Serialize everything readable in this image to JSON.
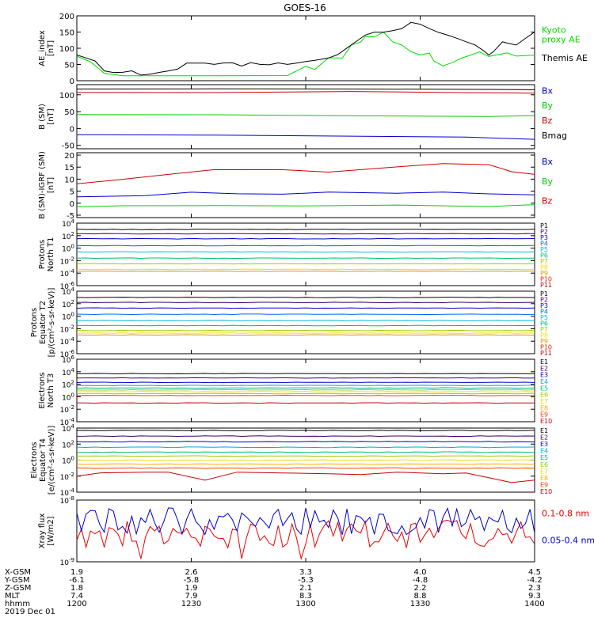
{
  "title": "GOES-16",
  "date_label": "2019 Dec 01",
  "footer": {
    "row_labels": [
      "X-GSM",
      "Y-GSM",
      "Z-GSM",
      "MLT",
      "hhmm"
    ],
    "columns": [
      [
        "1.9",
        "-6.1",
        "1.8",
        "7.4",
        "1200"
      ],
      [
        "2.6",
        "-5.8",
        "1.9",
        "7.9",
        "1230"
      ],
      [
        "3.3",
        "-5.3",
        "2.1",
        "8.3",
        "1300"
      ],
      [
        "4.0",
        "-4.8",
        "2.2",
        "8.8",
        "1330"
      ],
      [
        "4.5",
        "-4.2",
        "2.3",
        "9.3",
        "1400"
      ]
    ]
  },
  "chart_data": [
    {
      "type": "line",
      "panel": "ae",
      "ylabel": [
        "AE_index",
        "[nT]"
      ],
      "ylim": [
        0,
        200
      ],
      "yticks": [
        "0",
        "50",
        "100",
        "150",
        "200"
      ],
      "x_time": [
        "12:00",
        "14:00"
      ],
      "series": [
        {
          "name": "Kyoto proxy AE",
          "label_lines": [
            "Kyoto",
            "proxy AE"
          ],
          "color": "#00dd00",
          "points": [
            [
              0,
              75
            ],
            [
              3,
              58
            ],
            [
              6,
              22
            ],
            [
              10,
              15
            ],
            [
              15,
              15
            ],
            [
              30,
              15
            ],
            [
              40,
              15
            ],
            [
              46,
              15
            ],
            [
              50,
              45
            ],
            [
              52,
              35
            ],
            [
              55,
              70
            ],
            [
              58,
              70
            ],
            [
              60,
              110
            ],
            [
              62,
              120
            ],
            [
              63,
              135
            ],
            [
              65,
              135
            ],
            [
              67,
              150
            ],
            [
              69,
              120
            ],
            [
              71,
              110
            ],
            [
              73,
              90
            ],
            [
              75,
              80
            ],
            [
              77,
              85
            ],
            [
              78,
              60
            ],
            [
              80,
              45
            ],
            [
              82,
              55
            ],
            [
              84,
              70
            ],
            [
              86,
              80
            ],
            [
              88,
              90
            ],
            [
              90,
              75
            ],
            [
              92,
              80
            ],
            [
              94,
              85
            ],
            [
              96,
              75
            ],
            [
              100,
              80
            ]
          ]
        },
        {
          "name": "Themis AE",
          "label_lines": [
            "Themis AE"
          ],
          "color": "#000000",
          "points": [
            [
              0,
              80
            ],
            [
              2,
              70
            ],
            [
              4,
              60
            ],
            [
              6,
              30
            ],
            [
              8,
              25
            ],
            [
              10,
              25
            ],
            [
              12,
              30
            ],
            [
              14,
              18
            ],
            [
              16,
              20
            ],
            [
              18,
              25
            ],
            [
              20,
              30
            ],
            [
              22,
              35
            ],
            [
              24,
              55
            ],
            [
              26,
              55
            ],
            [
              28,
              55
            ],
            [
              30,
              50
            ],
            [
              32,
              55
            ],
            [
              34,
              55
            ],
            [
              36,
              45
            ],
            [
              38,
              55
            ],
            [
              40,
              50
            ],
            [
              42,
              50
            ],
            [
              44,
              55
            ],
            [
              46,
              50
            ],
            [
              48,
              55
            ],
            [
              50,
              60
            ],
            [
              52,
              62
            ],
            [
              55,
              70
            ],
            [
              57,
              80
            ],
            [
              59,
              100
            ],
            [
              61,
              120
            ],
            [
              63,
              140
            ],
            [
              65,
              150
            ],
            [
              67,
              150
            ],
            [
              69,
              155
            ],
            [
              71,
              160
            ],
            [
              73,
              180
            ],
            [
              75,
              175
            ],
            [
              77,
              160
            ],
            [
              79,
              150
            ],
            [
              81,
              140
            ],
            [
              83,
              130
            ],
            [
              85,
              120
            ],
            [
              87,
              110
            ],
            [
              89,
              90
            ],
            [
              90,
              80
            ],
            [
              91,
              90
            ],
            [
              93,
              120
            ],
            [
              94,
              115
            ],
            [
              96,
              110
            ],
            [
              98,
              130
            ],
            [
              99,
              140
            ],
            [
              100,
              150
            ]
          ]
        }
      ]
    },
    {
      "type": "line",
      "panel": "b_sm",
      "ylabel": [
        "B (SM)",
        "[nT]"
      ],
      "ylim": [
        -60,
        130
      ],
      "yticks": [
        "-50",
        "0",
        "50",
        "100"
      ],
      "series": [
        {
          "name": "Bx",
          "color": "#0000cc",
          "points": [
            [
              0,
              -18
            ],
            [
              30,
              -20
            ],
            [
              60,
              -22
            ],
            [
              85,
              -25
            ],
            [
              100,
              -32
            ]
          ]
        },
        {
          "name": "By",
          "color": "#00cc00",
          "points": [
            [
              0,
              42
            ],
            [
              30,
              40
            ],
            [
              60,
              38
            ],
            [
              90,
              36
            ],
            [
              100,
              38
            ]
          ]
        },
        {
          "name": "Bz",
          "color": "#cc0000",
          "points": [
            [
              0,
              107
            ],
            [
              30,
              107
            ],
            [
              60,
              109
            ],
            [
              85,
              107
            ],
            [
              100,
              105
            ]
          ]
        },
        {
          "name": "Bmag",
          "color": "#000000",
          "points": [
            [
              0,
              117
            ],
            [
              30,
              117
            ],
            [
              60,
              117
            ],
            [
              90,
              115
            ],
            [
              100,
              114
            ]
          ]
        }
      ]
    },
    {
      "type": "line",
      "panel": "b_minus_igrf",
      "ylabel": [
        "B (SM)-IGRF (SM)",
        "[nT]"
      ],
      "ylim": [
        -6,
        21
      ],
      "yticks": [
        "-5",
        "0",
        "5",
        "10",
        "15",
        "20"
      ],
      "series": [
        {
          "name": "Bx",
          "color": "#0000cc",
          "points": [
            [
              0,
              2.5
            ],
            [
              15,
              3
            ],
            [
              25,
              4.5
            ],
            [
              35,
              4
            ],
            [
              45,
              3.8
            ],
            [
              55,
              4.5
            ],
            [
              70,
              4
            ],
            [
              80,
              4.5
            ],
            [
              90,
              4
            ],
            [
              100,
              3.5
            ]
          ]
        },
        {
          "name": "By",
          "color": "#00cc00",
          "points": [
            [
              0,
              -1.5
            ],
            [
              10,
              -1
            ],
            [
              30,
              -1
            ],
            [
              50,
              -1.2
            ],
            [
              70,
              -0.8
            ],
            [
              90,
              -1.5
            ],
            [
              100,
              -0.5
            ]
          ]
        },
        {
          "name": "Bz",
          "color": "#cc0000",
          "points": [
            [
              0,
              8
            ],
            [
              10,
              10
            ],
            [
              20,
              12
            ],
            [
              30,
              14
            ],
            [
              45,
              14
            ],
            [
              55,
              13
            ],
            [
              70,
              15
            ],
            [
              80,
              16.5
            ],
            [
              90,
              16
            ],
            [
              95,
              13
            ],
            [
              100,
              12
            ]
          ]
        }
      ]
    },
    {
      "type": "line",
      "panel": "protons_t1",
      "ylabel": [
        "Protons",
        "North T1"
      ],
      "yscale": "log",
      "ylim_exp": [
        -6,
        4
      ],
      "ytick_exps": [
        -6,
        -4,
        -2,
        0,
        2,
        4
      ],
      "series": [
        {
          "name": "P1",
          "color": "#000000",
          "log_value": 3.0
        },
        {
          "name": "P2",
          "color": "#440066",
          "log_value": 2.3
        },
        {
          "name": "P3",
          "color": "#0000cc",
          "log_value": 1.5
        },
        {
          "name": "P4",
          "color": "#0066ff",
          "log_value": 0.4
        },
        {
          "name": "P5",
          "color": "#00bbdd",
          "log_value": -0.6
        },
        {
          "name": "P6",
          "color": "#00bb77",
          "log_value": -1.6
        },
        {
          "name": "P7",
          "color": "#99cc00",
          "log_value": -2.5
        },
        {
          "name": "P8",
          "color": "#eedd00",
          "log_value": -3.4
        },
        {
          "name": "P9",
          "color": "#dd9900",
          "log_value": -3.7
        },
        {
          "name": "P10",
          "color": "#dd2200",
          "log_value": null
        },
        {
          "name": "P11",
          "color": "#bb0000",
          "log_value": null
        }
      ]
    },
    {
      "type": "line",
      "panel": "protons_t2",
      "ylabel": [
        "Protons",
        "Equator T2",
        "[p/(cm²-s-sr-keV)]"
      ],
      "yscale": "log",
      "ylim_exp": [
        -6,
        4
      ],
      "ytick_exps": [
        -6,
        -4,
        -2,
        0,
        2,
        4
      ],
      "series": [
        {
          "name": "P1",
          "color": "#000000",
          "log_value": 3.0
        },
        {
          "name": "P2",
          "color": "#440066",
          "log_value": 2.2
        },
        {
          "name": "P3",
          "color": "#0000cc",
          "log_value": 1.3
        },
        {
          "name": "P4",
          "color": "#0066ff",
          "log_value": 0.3
        },
        {
          "name": "P5",
          "color": "#00bbdd",
          "log_value": -0.7
        },
        {
          "name": "P6",
          "color": "#00bb77",
          "log_value": -1.5
        },
        {
          "name": "P7",
          "color": "#99cc00",
          "log_value": -2.3
        },
        {
          "name": "P8",
          "color": "#eedd00",
          "log_value": -2.7
        },
        {
          "name": "P9",
          "color": "#dd9900",
          "log_value": -3.0
        },
        {
          "name": "P10",
          "color": "#dd2200",
          "log_value": null
        },
        {
          "name": "P11",
          "color": "#bb0000",
          "log_value": null
        }
      ]
    },
    {
      "type": "line",
      "panel": "electrons_t3",
      "ylabel": [
        "Electrons",
        "North T3"
      ],
      "yscale": "log",
      "ylim_exp": [
        -4,
        6
      ],
      "ytick_exps": [
        -4,
        -2,
        0,
        2,
        4,
        6
      ],
      "series": [
        {
          "name": "E1",
          "color": "#000000",
          "log_value": 3.7
        },
        {
          "name": "E2",
          "color": "#440066",
          "log_value": 3.0
        },
        {
          "name": "E3",
          "color": "#0000cc",
          "log_value": 2.3
        },
        {
          "name": "E4",
          "color": "#00aadd",
          "log_value": 1.8
        },
        {
          "name": "E5",
          "color": "#00bb77",
          "log_value": 1.4
        },
        {
          "name": "E6",
          "color": "#99cc00",
          "log_value": 1.1
        },
        {
          "name": "E7",
          "color": "#eedd00",
          "log_value": 0.8
        },
        {
          "name": "E8",
          "color": "#ffaa00",
          "log_value": 0.5
        },
        {
          "name": "E9",
          "color": "#ee4400",
          "log_value": 0.2
        },
        {
          "name": "E10",
          "color": "#cc0000",
          "log_value": -1.0
        }
      ]
    },
    {
      "type": "line",
      "panel": "electrons_t4",
      "ylabel": [
        "Electrons",
        "Equator T4",
        "[e/(cm²-s-sr-keV)]"
      ],
      "yscale": "log",
      "ylim_exp": [
        -4,
        4
      ],
      "ytick_exps": [
        -4,
        -2,
        0,
        2,
        4
      ],
      "series": [
        {
          "name": "E1",
          "color": "#000000",
          "log_value": 3.7
        },
        {
          "name": "E2",
          "color": "#440066",
          "log_value": 3.0
        },
        {
          "name": "E3",
          "color": "#0000cc",
          "log_value": 2.3
        },
        {
          "name": "E4",
          "color": "#00aadd",
          "log_value": 1.6
        },
        {
          "name": "E5",
          "color": "#00bb77",
          "log_value": 1.0
        },
        {
          "name": "E6",
          "color": "#99cc00",
          "log_value": 0.5
        },
        {
          "name": "E7",
          "color": "#eedd00",
          "log_value": 0.0
        },
        {
          "name": "E8",
          "color": "#ffaa00",
          "log_value": -0.5
        },
        {
          "name": "E9",
          "color": "#ee4400",
          "log_value": -1.0
        },
        {
          "name": "E10",
          "color": "#cc0000",
          "points": [
            [
              0,
              -2
            ],
            [
              5,
              -1.6
            ],
            [
              15,
              -1.5
            ],
            [
              20,
              -1.5
            ],
            [
              28,
              -2.5
            ],
            [
              35,
              -1.5
            ],
            [
              45,
              -1.6
            ],
            [
              55,
              -1.7
            ],
            [
              62,
              -1.8
            ],
            [
              70,
              -1.5
            ],
            [
              75,
              -1.6
            ],
            [
              80,
              -1.7
            ],
            [
              85,
              -1.6
            ],
            [
              90,
              -2.2
            ],
            [
              95,
              -2.8
            ],
            [
              100,
              -2.5
            ]
          ]
        }
      ]
    },
    {
      "type": "line",
      "panel": "xray",
      "ylabel": [
        "Xray flux",
        "[W/m2]"
      ],
      "yscale": "log",
      "ylim_exp": [
        -9,
        -8
      ],
      "ytick_exps": [
        -9,
        -8
      ],
      "series": [
        {
          "name": "0.1-0.8 nm",
          "color": "#ee0000"
        },
        {
          "name": "0.05-0.4 nm",
          "color": "#0000cc"
        }
      ]
    }
  ]
}
